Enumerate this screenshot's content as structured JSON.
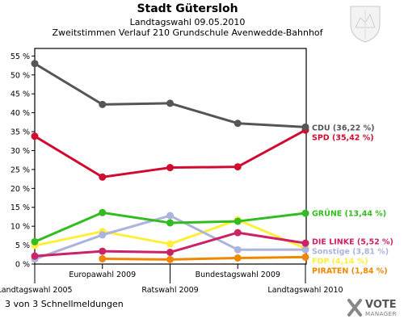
{
  "header": {
    "title": "Stadt Gütersloh",
    "subtitle": "Landtagswahl 09.05.2010",
    "subtitle2": "Zweitstimmen Verlauf 210 Grundschule Avenwedde-Bahnhof"
  },
  "footer": {
    "text": "3 von 3 Schnellmeldungen"
  },
  "brand": {
    "line1": "VOTE",
    "line2": "MANAGER"
  },
  "chart_data": {
    "type": "line",
    "title": "Stadt Gütersloh",
    "ylim": [
      0,
      57
    ],
    "yticks": [
      0,
      5,
      10,
      15,
      20,
      25,
      30,
      35,
      40,
      45,
      50,
      55
    ],
    "y_tick_suffix": " %",
    "grid": false,
    "legend": "right",
    "x": [
      {
        "label": "Landtagswahl 2005",
        "row": 1
      },
      {
        "label": "Europawahl 2009",
        "row": 0
      },
      {
        "label": "Ratswahl 2009",
        "row": 1
      },
      {
        "label": "Bundestagswahl 2009",
        "row": 0
      },
      {
        "label": "Landtagswahl 2010",
        "row": 1
      }
    ],
    "series": [
      {
        "name": "CDU",
        "legend": "CDU (36,22 %)",
        "color": "#555555",
        "values": [
          53.0,
          42.2,
          42.5,
          37.2,
          36.22
        ]
      },
      {
        "name": "SPD",
        "legend": "SPD (35,42 %)",
        "color": "#d00b2f",
        "values": [
          33.8,
          23.0,
          25.5,
          25.7,
          35.42
        ]
      },
      {
        "name": "GRÜNE",
        "legend": "GRÜNE (13,44 %)",
        "color": "#33bb22",
        "values": [
          5.9,
          13.6,
          10.9,
          11.3,
          13.44
        ]
      },
      {
        "name": "DIE LINKE",
        "legend": "DIE LINKE (5,52 %)",
        "color": "#cc2266",
        "values": [
          2.1,
          3.4,
          3.1,
          8.3,
          5.52
        ]
      },
      {
        "name": "FDP",
        "legend": "FDP (4,14 %)",
        "color": "#ffef3a",
        "values": [
          4.9,
          8.6,
          5.3,
          11.7,
          4.14
        ]
      },
      {
        "name": "Sonstige",
        "legend": "Sonstige (3,81 %)",
        "color": "#aab4dd",
        "values": [
          1.3,
          7.7,
          12.8,
          3.8,
          3.81
        ]
      },
      {
        "name": "PIRATEN",
        "legend": "PIRATEN (1,84 %)",
        "color": "#ee8800",
        "values": [
          null,
          1.4,
          1.2,
          1.6,
          1.84
        ]
      }
    ]
  }
}
